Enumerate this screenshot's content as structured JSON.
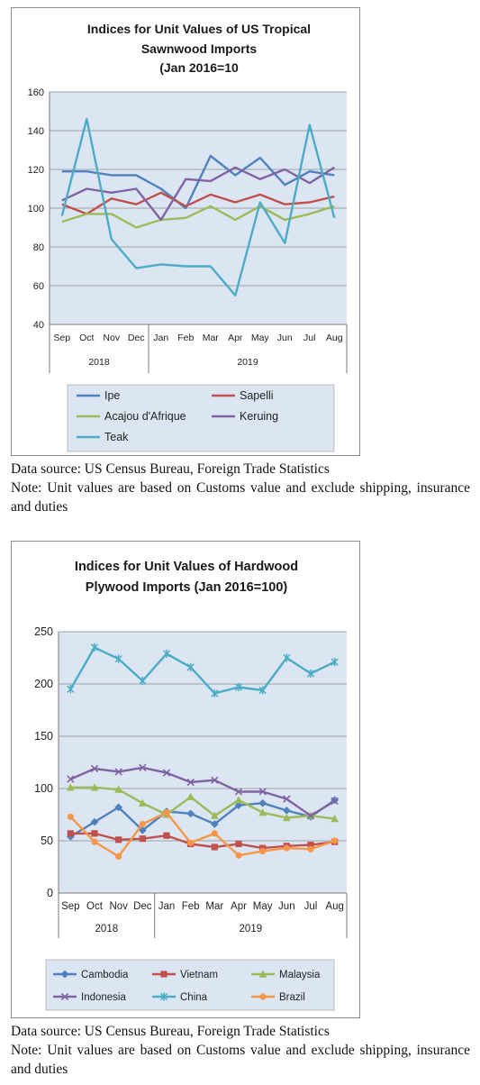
{
  "chart_data": [
    {
      "type": "line",
      "title": "Indices for Unit Values of US Tropical Sawnwood Imports (Jan 2016=10",
      "title_lines": [
        "Indices for Unit Values of US Tropical",
        "Sawnwood Imports",
        "(Jan 2016=10"
      ],
      "categories": [
        "Sep",
        "Oct",
        "Nov",
        "Dec",
        "Jan",
        "Feb",
        "Mar",
        "Apr",
        "May",
        "Jun",
        "Jul",
        "Aug"
      ],
      "year_groups": [
        {
          "label": "2018",
          "span": 4
        },
        {
          "label": "2019",
          "span": 8
        }
      ],
      "ylim": [
        40,
        160
      ],
      "yticks": [
        40,
        60,
        80,
        100,
        120,
        140,
        160
      ],
      "grid": true,
      "legend": "bottom",
      "plot_background": "#dce6f2",
      "series": [
        {
          "name": "Ipe",
          "color": "#4f81bd",
          "values": [
            119,
            119,
            117,
            117,
            110,
            100,
            127,
            117,
            126,
            112,
            119,
            117
          ]
        },
        {
          "name": "Sapelli",
          "color": "#c0504d",
          "values": [
            102,
            97,
            105,
            102,
            108,
            101,
            107,
            103,
            107,
            102,
            103,
            106
          ]
        },
        {
          "name": "Acajou d'Afrique",
          "color": "#9bbb59",
          "values": [
            93,
            97,
            97,
            90,
            94,
            95,
            101,
            94,
            101,
            94,
            97,
            101
          ]
        },
        {
          "name": "Keruing",
          "color": "#8064a2",
          "values": [
            104,
            110,
            108,
            110,
            94,
            115,
            114,
            121,
            115,
            120,
            113,
            121
          ]
        },
        {
          "name": "Teak",
          "color": "#4bacc6",
          "values": [
            96,
            146,
            84,
            69,
            71,
            70,
            70,
            55,
            103,
            82,
            143,
            95
          ]
        }
      ]
    },
    {
      "type": "line",
      "title": "Indices for Unit Values of Hardwood Plywood Imports (Jan 2016=100)",
      "title_lines": [
        "Indices for Unit Values of Hardwood",
        "Plywood Imports (Jan 2016=100)"
      ],
      "categories": [
        "Sep",
        "Oct",
        "Nov",
        "Dec",
        "Jan",
        "Feb",
        "Mar",
        "Apr",
        "May",
        "Jun",
        "Jul",
        "Aug"
      ],
      "year_groups": [
        {
          "label": "2018",
          "span": 4
        },
        {
          "label": "2019",
          "span": 8
        }
      ],
      "ylim": [
        0,
        250
      ],
      "yticks": [
        0,
        50,
        100,
        150,
        200,
        250
      ],
      "grid": true,
      "legend": "bottom",
      "plot_background": "#dce6f2",
      "series": [
        {
          "name": "Cambodia",
          "color": "#4f81bd",
          "marker": "diamond",
          "values": [
            54,
            68,
            82,
            60,
            78,
            76,
            66,
            84,
            86,
            79,
            73,
            89
          ]
        },
        {
          "name": "Vietnam",
          "color": "#c0504d",
          "marker": "square",
          "values": [
            57,
            57,
            51,
            52,
            55,
            47,
            44,
            47,
            43,
            45,
            46,
            49
          ]
        },
        {
          "name": "Malaysia",
          "color": "#9bbb59",
          "marker": "triangle",
          "values": [
            101,
            101,
            99,
            86,
            75,
            92,
            74,
            89,
            77,
            72,
            74,
            71
          ]
        },
        {
          "name": "Indonesia",
          "color": "#8064a2",
          "marker": "x",
          "values": [
            109,
            119,
            116,
            120,
            115,
            106,
            108,
            97,
            97,
            90,
            74,
            88
          ]
        },
        {
          "name": "China",
          "color": "#4bacc6",
          "marker": "star",
          "values": [
            195,
            235,
            224,
            203,
            229,
            216,
            191,
            197,
            194,
            225,
            210,
            221
          ]
        },
        {
          "name": "Brazil",
          "color": "#f79646",
          "marker": "circle",
          "values": [
            73,
            49,
            35,
            66,
            77,
            48,
            57,
            36,
            40,
            43,
            42,
            50
          ]
        }
      ]
    }
  ],
  "notes": [
    {
      "source": "Data source: US Census Bureau, Foreign Trade Statistics",
      "note": "Note: Unit values are based on Customs value and exclude shipping, insurance and duties"
    },
    {
      "source": "Data source: US Census Bureau, Foreign Trade Statistics",
      "note": "Note: Unit values are based on Customs value and exclude shipping, insurance and duties"
    }
  ]
}
